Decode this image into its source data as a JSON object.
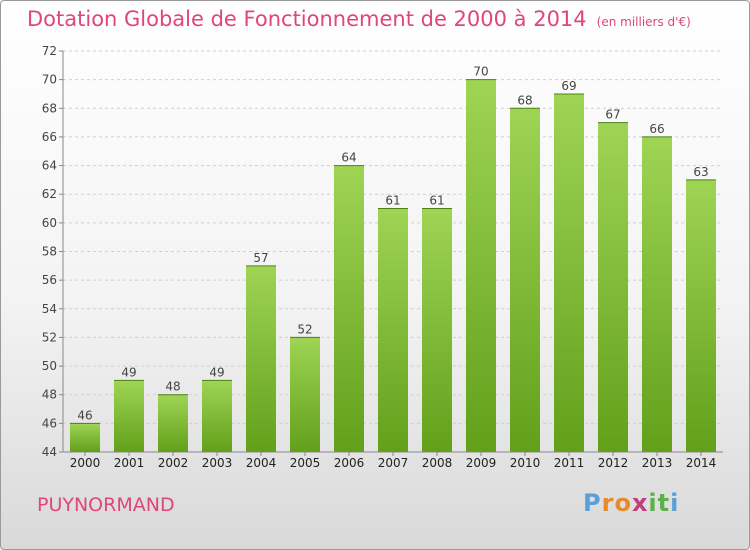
{
  "title": "Dotation Globale de Fonctionnement de 2000 à 2014",
  "unit": "(en milliers d'€)",
  "commune": "PUYNORMAND",
  "logo": {
    "letters": [
      "P",
      "r",
      "o",
      "x",
      "i",
      "t",
      "i"
    ],
    "colors": [
      "#5aa0d8",
      "#e8892c",
      "#e8892c",
      "#c23b7a",
      "#5ab14a",
      "#5ab14a",
      "#5aa0d8"
    ]
  },
  "colors": {
    "title": "#e0457b",
    "bar_light": "#9fd455",
    "bar_dark": "#62a01a",
    "grid": "#cfcfcf"
  },
  "chart_data": {
    "type": "bar",
    "title": "Dotation Globale de Fonctionnement de 2000 à 2014",
    "categories": [
      "2000",
      "2001",
      "2002",
      "2003",
      "2004",
      "2005",
      "2006",
      "2007",
      "2008",
      "2009",
      "2010",
      "2011",
      "2012",
      "2013",
      "2014"
    ],
    "values": [
      46,
      49,
      48,
      49,
      57,
      52,
      64,
      61,
      61,
      70,
      68,
      69,
      67,
      66,
      63
    ],
    "ylim": [
      44,
      72
    ],
    "yticks": [
      44,
      46,
      48,
      50,
      52,
      54,
      56,
      58,
      60,
      62,
      64,
      66,
      68,
      70,
      72
    ],
    "grid": true,
    "data_labels": true
  }
}
